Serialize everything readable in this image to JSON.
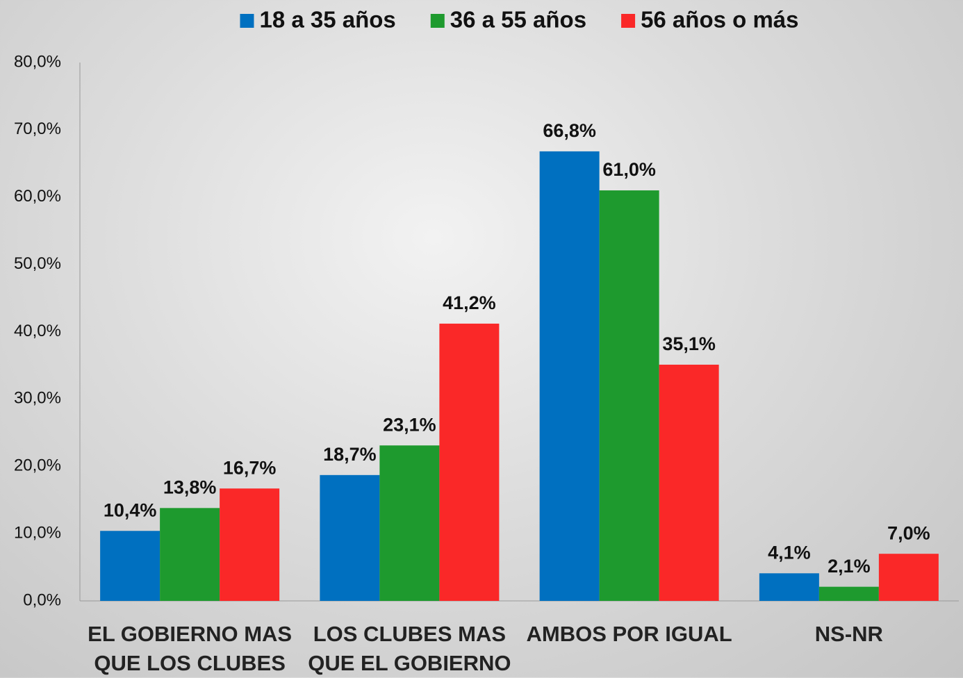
{
  "chart_data": {
    "type": "bar",
    "categories": [
      "EL GOBIERNO MAS QUE LOS CLUBES",
      "LOS CLUBES MAS QUE EL GOBIERNO",
      "AMBOS POR IGUAL",
      "NS-NR"
    ],
    "series": [
      {
        "name": "18 a 35 años",
        "color": "#0070c0",
        "values": [
          10.4,
          18.7,
          66.8,
          4.1
        ],
        "value_labels": [
          "10,4%",
          "18,7%",
          "66,8%",
          "4,1%"
        ]
      },
      {
        "name": "36 a 55 años",
        "color": "#1e9a2e",
        "values": [
          13.8,
          23.1,
          61.0,
          2.1
        ],
        "value_labels": [
          "13,8%",
          "23,1%",
          "61,0%",
          "2,1%"
        ]
      },
      {
        "name": "56 años o más",
        "color": "#fa2828",
        "values": [
          16.7,
          41.2,
          35.1,
          7.0
        ],
        "value_labels": [
          "16,7%",
          "41,2%",
          "35,1%",
          "7,0%"
        ]
      }
    ],
    "ylim": [
      0,
      80
    ],
    "yticks": [
      {
        "value": 0,
        "label": "0,0%"
      },
      {
        "value": 10,
        "label": "10,0%"
      },
      {
        "value": 20,
        "label": "20,0%"
      },
      {
        "value": 30,
        "label": "30,0%"
      },
      {
        "value": 40,
        "label": "40,0%"
      },
      {
        "value": 50,
        "label": "50,0%"
      },
      {
        "value": 60,
        "label": "60,0%"
      },
      {
        "value": 70,
        "label": "70,0%"
      },
      {
        "value": 80,
        "label": "80,0%"
      }
    ],
    "legend": "top",
    "grid": false
  }
}
